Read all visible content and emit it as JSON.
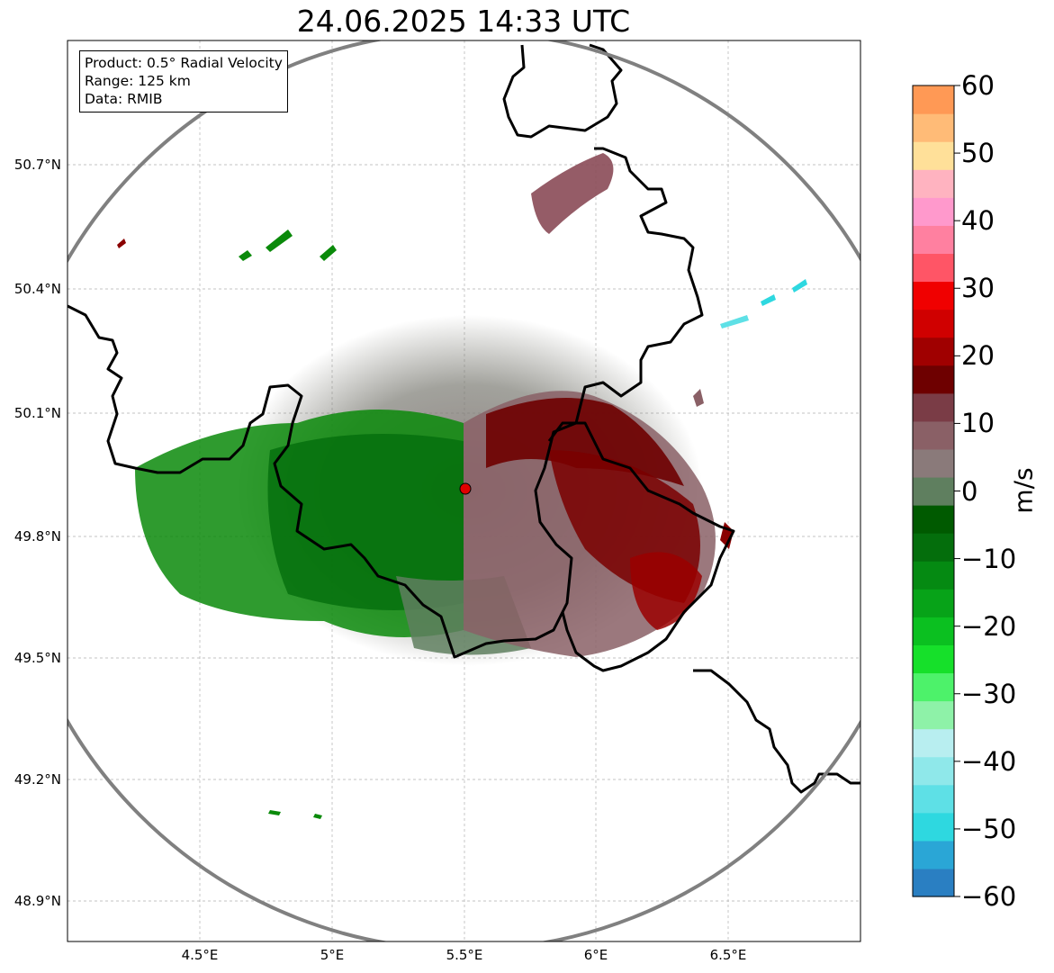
{
  "title": "24.06.2025 14:33 UTC",
  "info": {
    "product": "Product: 0.5° Radial Velocity",
    "range": "Range: 125 km",
    "source": "Data: RMIB"
  },
  "lat_labels": [
    "50.7°N",
    "50.4°N",
    "50.1°N",
    "49.8°N",
    "49.5°N",
    "49.2°N",
    "48.9°N"
  ],
  "lon_labels": [
    "4.5°E",
    "5°E",
    "5.5°E",
    "6°E",
    "6.5°E"
  ],
  "colorbar": {
    "unit": "m/s",
    "ticks": [
      "60",
      "50",
      "40",
      "30",
      "20",
      "10",
      "0",
      "−10",
      "−20",
      "−30",
      "−40",
      "−50",
      "−60"
    ],
    "min": -60,
    "max": 60,
    "stops": [
      "#2a7fc2",
      "#2aa6d6",
      "#2ed8e0",
      "#5ee0e6",
      "#8fe8ea",
      "#b8eef0",
      "#8ef2a8",
      "#4df26a",
      "#16e02a",
      "#0bc020",
      "#07a318",
      "#058a12",
      "#046e0c",
      "#005a00",
      "#5f7f5f",
      "#8a7a7a",
      "#8a6066",
      "#7a3c46",
      "#6e0000",
      "#a00000",
      "#d00000",
      "#f00000",
      "#ff5566",
      "#ff80a0",
      "#ff99cc",
      "#ffb3c0",
      "#ffe099",
      "#ffbb77",
      "#ff9955"
    ]
  },
  "radar_site": {
    "label": "radar-site",
    "color": "#e00000"
  }
}
